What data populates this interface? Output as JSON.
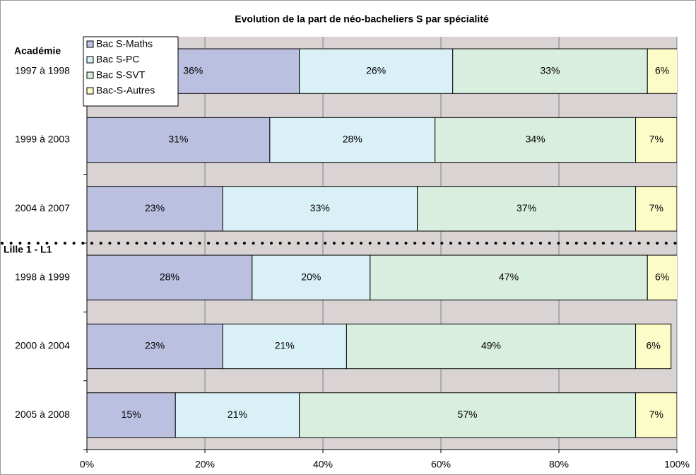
{
  "chart_data": {
    "type": "stacked-bar-horizontal",
    "title": "Evolution de la part de néo-bacheliers S par spécialité",
    "categories": [
      "1997 à 1998",
      "1999 à 2003",
      "2004 à 2007",
      "1998 à 1999",
      "2000 à 2004",
      "2005 à 2008"
    ],
    "annotations": [
      "Académie",
      "Lille 1 - L1"
    ],
    "series": [
      {
        "name": "Bac S-Maths",
        "color": "#bcc0e0",
        "values": [
          36,
          31,
          23,
          28,
          23,
          15
        ],
        "value_labels": [
          "36%",
          "31%",
          "23%",
          "28%",
          "23%",
          "15%"
        ]
      },
      {
        "name": "Bac S-PC",
        "color": "#d8f0f6",
        "values": [
          26,
          28,
          33,
          20,
          21,
          21
        ],
        "value_labels": [
          "26%",
          "28%",
          "33%",
          "20%",
          "21%",
          "21%"
        ]
      },
      {
        "name": "Bac S-SVT",
        "color": "#d8eede",
        "values": [
          33,
          34,
          37,
          47,
          49,
          57
        ],
        "value_labels": [
          "33%",
          "34%",
          "37%",
          "47%",
          "49%",
          "57%"
        ]
      },
      {
        "name": "Bac-S-Autres",
        "color": "#fcfcc8",
        "values": [
          6,
          7,
          7,
          6,
          6,
          7
        ],
        "value_labels": [
          "6%",
          "7%",
          "7%",
          "6%",
          "6%",
          "7%"
        ]
      }
    ],
    "xlim": [
      0,
      100
    ],
    "xticks": [
      {
        "value": 0,
        "label": "0%"
      },
      {
        "value": 20,
        "label": "20%"
      },
      {
        "value": 40,
        "label": "40%"
      },
      {
        "value": 60,
        "label": "60%"
      },
      {
        "value": 80,
        "label": "80%"
      },
      {
        "value": 100,
        "label": "100%"
      }
    ],
    "grid": true,
    "legend": "top-left"
  }
}
